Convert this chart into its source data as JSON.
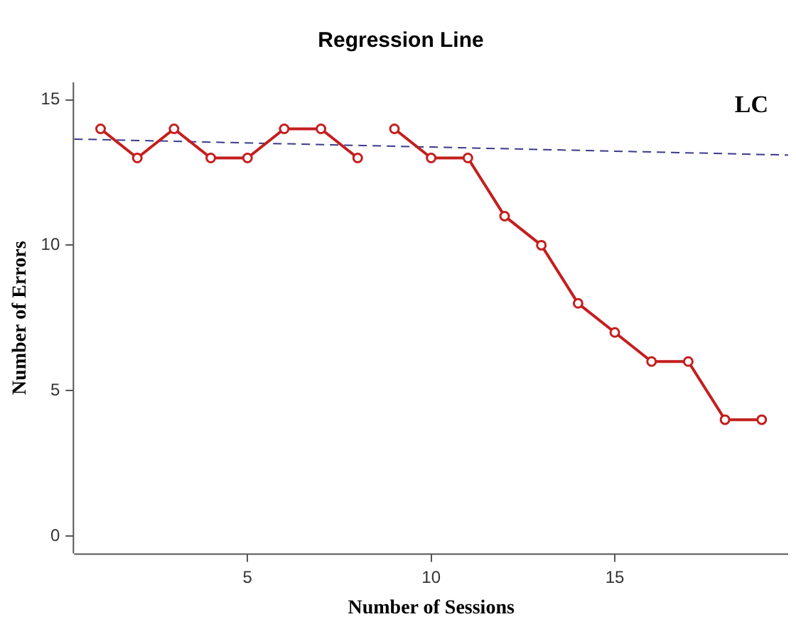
{
  "chart_data": {
    "type": "line",
    "title": "Regression Line",
    "xlabel": "Number of Sessions",
    "ylabel": "Number of Errors",
    "annotations": [
      "LC"
    ],
    "xlim": [
      0.28,
      19.72
    ],
    "xticks": [
      5,
      10,
      15
    ],
    "ylim": [
      -0.6,
      15.6
    ],
    "yticks": [
      0,
      5,
      10,
      15
    ],
    "grid": false,
    "legend": false,
    "series": [
      {
        "color": "#c41e1e",
        "marker": "circle",
        "line_style": "solid",
        "x": [
          1,
          2,
          3,
          4,
          5,
          6,
          7,
          8,
          8.5,
          9,
          10,
          11,
          12,
          13,
          14,
          15,
          16,
          17,
          18,
          19
        ],
        "values": [
          14,
          13,
          14,
          13,
          13,
          14,
          14,
          13,
          null,
          14,
          13,
          13,
          11,
          10,
          8,
          7,
          6,
          6,
          4,
          4
        ]
      },
      {
        "color": "#3a3a8c",
        "marker": "none",
        "line_style": "dashed",
        "x": [
          0.28,
          19.72
        ],
        "values": [
          13.65,
          13.1
        ]
      }
    ]
  }
}
